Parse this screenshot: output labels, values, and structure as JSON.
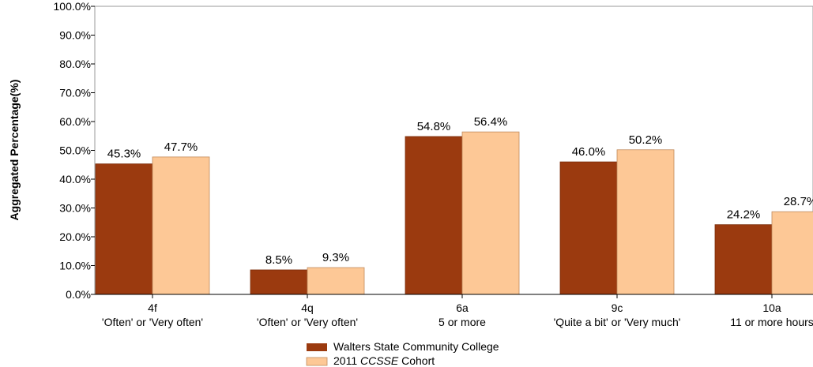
{
  "chart_data": {
    "type": "bar",
    "ylabel": "Aggregated Percentage(%)",
    "xlabel": "",
    "ylim": [
      0,
      100
    ],
    "yticks": [
      "0.0%",
      "10.0%",
      "20.0%",
      "30.0%",
      "40.0%",
      "50.0%",
      "60.0%",
      "70.0%",
      "80.0%",
      "90.0%",
      "100.0%"
    ],
    "grid": false,
    "legend_position": "bottom",
    "categories": [
      {
        "code": "4f",
        "label": "'Often' or 'Very often'"
      },
      {
        "code": "4q",
        "label": "'Often' or 'Very often'"
      },
      {
        "code": "6a",
        "label": "5 or more"
      },
      {
        "code": "9c",
        "label": "'Quite a bit' or 'Very much'"
      },
      {
        "code": "10a",
        "label": "11 or more hours"
      }
    ],
    "series": [
      {
        "name": "Walters State Community College",
        "color": "#9b3a0f",
        "values": [
          45.3,
          8.5,
          54.8,
          46.0,
          24.2
        ],
        "labels": [
          "45.3%",
          "8.5%",
          "54.8%",
          "46.0%",
          "24.2%"
        ]
      },
      {
        "name": "2011 CCSSE Cohort",
        "color": "#fdc896",
        "values": [
          47.7,
          9.3,
          56.4,
          50.2,
          28.7
        ],
        "labels": [
          "47.7%",
          "9.3%",
          "56.4%",
          "50.2%",
          "28.7%"
        ]
      }
    ],
    "legend": [
      {
        "prefix": "Walters State Community College",
        "italic": "",
        "suffix": ""
      },
      {
        "prefix": "2011 ",
        "italic": "CCSSE",
        "suffix": " Cohort"
      }
    ]
  }
}
